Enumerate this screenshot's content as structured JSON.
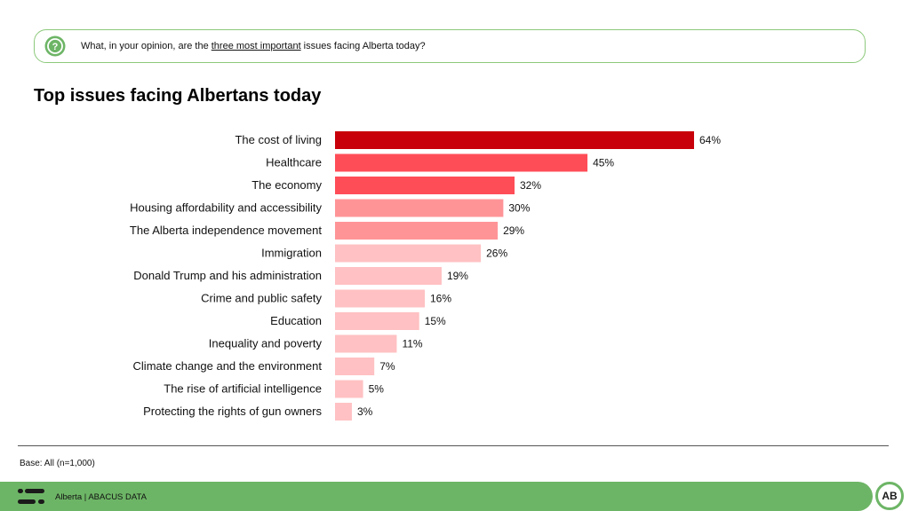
{
  "question": {
    "prefix": "What, in your opinion, are the ",
    "emphasis": "three most important",
    "suffix": " issues facing Alberta today?"
  },
  "chart_data": {
    "type": "bar",
    "orientation": "horizontal",
    "title": "Top issues facing Albertans today",
    "categories": [
      "The cost of living",
      "Healthcare",
      "The economy",
      "Housing affordability and accessibility",
      "The Alberta independence movement",
      "Immigration",
      "Donald Trump and his administration",
      "Crime and public safety",
      "Education",
      "Inequality and poverty",
      "Climate change and the environment",
      "The rise of artificial intelligence",
      "Protecting the rights of gun owners"
    ],
    "values": [
      64,
      45,
      32,
      30,
      29,
      26,
      19,
      16,
      15,
      11,
      7,
      5,
      3
    ],
    "value_labels": [
      "64%",
      "45%",
      "32%",
      "30%",
      "29%",
      "26%",
      "19%",
      "16%",
      "15%",
      "11%",
      "7%",
      "5%",
      "3%"
    ],
    "colors": [
      "#c8000a",
      "#ff4d57",
      "#ff4d57",
      "#ff9497",
      "#ff9497",
      "#ffc1c3",
      "#ffc1c3",
      "#ffc1c3",
      "#ffc1c3",
      "#ffc1c3",
      "#ffc1c3",
      "#ffc1c3",
      "#ffc1c3"
    ],
    "grid": false,
    "legend": "none"
  },
  "base_note": "Base: All (n=1,000)",
  "footer": {
    "text": "Alberta | ABACUS DATA",
    "badge": "AB",
    "accent": "#6db566"
  }
}
